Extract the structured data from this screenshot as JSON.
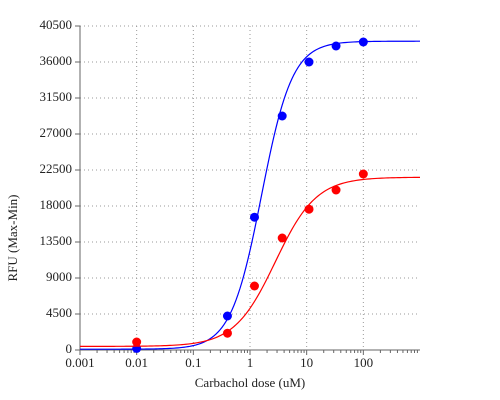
{
  "chart_data": {
    "type": "scatter",
    "x_label": "Carbachol dose (uM)",
    "y_label": "RFU (Max-Min)",
    "x_scale": "log",
    "x": [
      0.01,
      0.4,
      1.2,
      3.7,
      11,
      33,
      100
    ],
    "series": [
      {
        "color": "#0000ff",
        "values": [
          200,
          4250,
          16600,
          29250,
          36000,
          38000,
          38500
        ],
        "fit": {
          "bottom": 100,
          "top": 38600,
          "ec50": 1.6,
          "hill": 1.6
        }
      },
      {
        "color": "#ff0000",
        "values": [
          1000,
          2100,
          8000,
          14000,
          17600,
          20000,
          22000
        ],
        "fit": {
          "bottom": 450,
          "top": 21600,
          "ec50": 2.8,
          "hill": 1.2
        }
      }
    ],
    "xlim": [
      0.001,
      1000
    ],
    "xticks": [
      0.001,
      0.01,
      0.1,
      1,
      10,
      100
    ],
    "ylim": [
      0,
      40500
    ],
    "yticks": [
      0,
      4500,
      9000,
      13500,
      18000,
      22500,
      27000,
      31500,
      36000,
      40500
    ],
    "grid": true
  }
}
